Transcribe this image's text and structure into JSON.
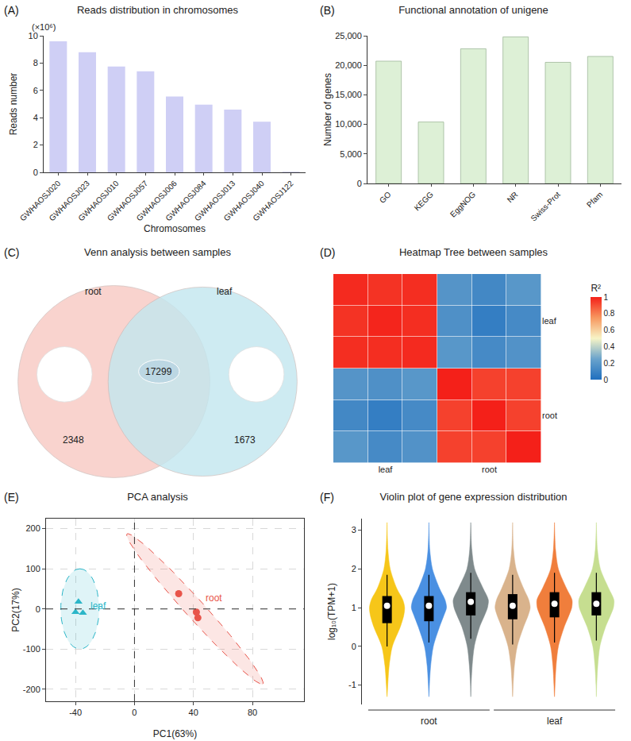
{
  "chart_data": [
    {
      "type": "bar",
      "panel": "(A)",
      "title": "Reads distribution in chromosomes",
      "x_label": "Chromosomes",
      "y_label": "Reads number",
      "annotations": [
        "(×10⁶)"
      ],
      "categories": [
        "GWHAOSJ020",
        "GWHAOSJ023",
        "GWHAOSJ010",
        "GWHAOSJ057",
        "GWHAOSJ006",
        "GWHAOSJ084",
        "GWHAOSJ013",
        "GWHAOSJ040",
        "GWHAOSJ122"
      ],
      "values": [
        9.6,
        8.8,
        7.75,
        7.4,
        5.55,
        4.95,
        4.6,
        3.7,
        0.05
      ],
      "color": "#cfcff5",
      "ylim": [
        0,
        10
      ],
      "yticks": [
        0,
        2,
        4,
        6,
        8,
        10
      ],
      "grid": false
    },
    {
      "type": "bar",
      "panel": "(B)",
      "title": "Functional annotation of unigene",
      "y_label": "Number of genes",
      "categories": [
        "GO",
        "KEGG",
        "EggNOG",
        "NR",
        "Swiss-Prot",
        "Pfam"
      ],
      "values": [
        20700,
        10400,
        22800,
        24800,
        20500,
        21500
      ],
      "color": "#ddf0d6",
      "ylim": [
        0,
        25000
      ],
      "yticks": [
        0,
        {
          "value": 5000,
          "label": "5,000"
        },
        {
          "value": 10000,
          "label": "10,000"
        },
        {
          "value": 15000,
          "label": "15,000"
        },
        {
          "value": 20000,
          "label": "20,000"
        },
        {
          "value": 25000,
          "label": "25,000"
        }
      ],
      "grid": false
    },
    {
      "type": "venn",
      "panel": "(C)",
      "title": "Venn analysis between samples",
      "sets": [
        {
          "name": "root",
          "count": 2348,
          "color": "#f8c9c2"
        },
        {
          "name": "leaf",
          "count": 1673,
          "color": "#c3e7ef"
        }
      ],
      "shared": 17299
    },
    {
      "type": "heatmap",
      "panel": "(D)",
      "title": "Heatmap Tree between samples",
      "categories": [
        null,
        "leaf",
        null,
        null,
        "root",
        null
      ],
      "y_categories": [
        null,
        "leaf",
        null,
        null,
        "root",
        null
      ],
      "cells": [
        [
          0.98,
          0.96,
          0.97,
          0.18,
          0.12,
          0.19
        ],
        [
          0.96,
          0.99,
          0.97,
          0.16,
          0.07,
          0.13
        ],
        [
          0.97,
          0.97,
          0.98,
          0.19,
          0.13,
          0.17
        ],
        [
          0.18,
          0.16,
          0.19,
          1.0,
          0.93,
          0.93
        ],
        [
          0.12,
          0.07,
          0.13,
          0.93,
          1.0,
          0.93
        ],
        [
          0.19,
          0.13,
          0.17,
          0.93,
          0.93,
          1.0
        ]
      ],
      "colorbar_title": "R²",
      "zlim": [
        0,
        1
      ],
      "zticks": [
        0,
        0.2,
        0.4,
        0.6,
        0.8,
        1
      ]
    },
    {
      "type": "scatter",
      "panel": "(E)",
      "title": "PCA analysis",
      "x_label": "PC1(63%)",
      "y_label": "PC2(17%)",
      "series": [
        {
          "name": "leaf",
          "color": "#2bb6c8",
          "marker": "triangle",
          "x": [
            -38,
            -40,
            -35
          ],
          "y": [
            18,
            -8,
            -10
          ],
          "ellipse": {
            "center": [
              -37,
              0
            ],
            "major": [
              0,
              100
            ],
            "minor": [
              13,
              0
            ]
          }
        },
        {
          "name": "root",
          "color": "#e8544a",
          "marker": "circle",
          "x": [
            30,
            42,
            43
          ],
          "y": [
            38,
            -8,
            -22
          ],
          "ellipse": {
            "center": [
              41,
              0
            ],
            "major": [
              46,
              -187
            ],
            "minor": [
              5.2,
              14
            ]
          }
        }
      ],
      "ref_lines": {
        "x": 0,
        "y": 0
      },
      "xlim": [
        -60,
        115
      ],
      "xticks": [
        -40,
        0,
        40,
        80
      ],
      "ylim": [
        -230,
        225
      ],
      "yticks": [
        -200,
        -100,
        0,
        100,
        200
      ],
      "grid": true
    },
    {
      "type": "violin",
      "panel": "(F)",
      "title": "Violin plot of gene expression distribution",
      "y_label": "log₁₀(TPM+1)",
      "tick_labels": "y",
      "y_grid": [
        -1.3,
        -1.0,
        -0.5,
        0.0,
        0.5,
        0.8,
        1.0,
        1.2,
        1.5,
        2.0,
        2.5,
        3.2
      ],
      "groups": [
        {
          "name": "root",
          "series": [
            {
              "color": "#f6c619",
              "density": [
                0,
                0.04,
                0.12,
                0.3,
                0.75,
                0.95,
                1.0,
                0.9,
                0.55,
                0.18,
                0.05,
                0
              ],
              "box": {
                "lo": 0.0,
                "q1": 0.6,
                "median": 1.05,
                "q3": 1.3,
                "hi": 1.85
              }
            },
            {
              "color": "#4a90e2",
              "density": [
                0,
                0.03,
                0.1,
                0.25,
                0.6,
                0.85,
                1.0,
                0.92,
                0.6,
                0.2,
                0.05,
                0
              ],
              "box": {
                "lo": 0.1,
                "q1": 0.65,
                "median": 1.05,
                "q3": 1.3,
                "hi": 1.85
              }
            },
            {
              "color": "#7f8a8c",
              "density": [
                0,
                0.02,
                0.08,
                0.2,
                0.5,
                0.78,
                0.95,
                1.0,
                0.7,
                0.22,
                0.06,
                0
              ],
              "box": {
                "lo": 0.2,
                "q1": 0.8,
                "median": 1.15,
                "q3": 1.4,
                "hi": 1.9
              }
            }
          ]
        },
        {
          "name": "leaf",
          "series": [
            {
              "color": "#d9b38c",
              "density": [
                0,
                0.03,
                0.1,
                0.26,
                0.62,
                0.88,
                1.0,
                0.92,
                0.62,
                0.2,
                0.05,
                0
              ],
              "box": {
                "lo": 0.05,
                "q1": 0.7,
                "median": 1.05,
                "q3": 1.35,
                "hi": 1.85
              }
            },
            {
              "color": "#f07e3c",
              "density": [
                0,
                0.03,
                0.09,
                0.22,
                0.55,
                0.82,
                0.98,
                1.0,
                0.68,
                0.22,
                0.06,
                0
              ],
              "box": {
                "lo": 0.1,
                "q1": 0.75,
                "median": 1.1,
                "q3": 1.4,
                "hi": 1.9
              }
            },
            {
              "color": "#c6de90",
              "density": [
                0,
                0.02,
                0.08,
                0.2,
                0.52,
                0.8,
                0.97,
                1.0,
                0.7,
                0.23,
                0.06,
                0
              ],
              "box": {
                "lo": 0.15,
                "q1": 0.8,
                "median": 1.1,
                "q3": 1.4,
                "hi": 1.9
              }
            }
          ]
        }
      ],
      "ylim": [
        -1.5,
        3.3
      ],
      "yticks": [
        -1,
        0,
        1,
        2,
        3
      ],
      "grid": false
    }
  ]
}
